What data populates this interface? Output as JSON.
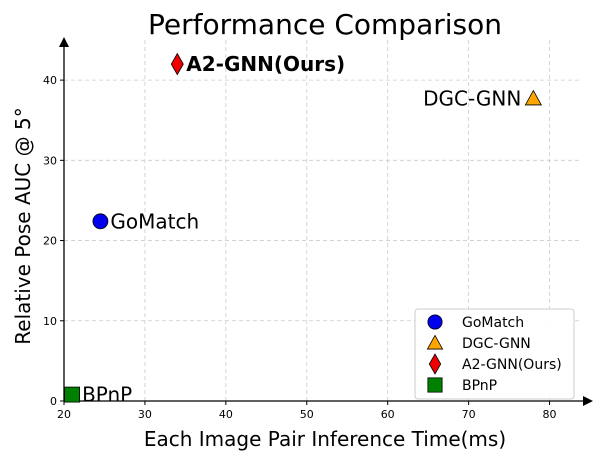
{
  "chart_data": {
    "type": "scatter",
    "title": "Performance Comparison",
    "xlabel": "Each Image Pair Inference Time(ms)",
    "ylabel": "Relative Pose AUC @ 5°",
    "xlim": [
      20,
      85
    ],
    "ylim": [
      0,
      45
    ],
    "xticks": [
      20,
      30,
      40,
      50,
      60,
      70,
      80
    ],
    "yticks": [
      0,
      10,
      20,
      30,
      40
    ],
    "grid": true,
    "legend_position": "bottom-right",
    "series": [
      {
        "name": "GoMatch",
        "x": 24.5,
        "y": 22.4,
        "marker": "circle",
        "color": "#0000ee",
        "label_bold": false
      },
      {
        "name": "DGC-GNN",
        "x": 78.0,
        "y": 37.7,
        "marker": "triangle",
        "color": "#ffa500",
        "label_bold": false
      },
      {
        "name": "A2-GNN(Ours)",
        "x": 34.0,
        "y": 42.0,
        "marker": "diamond",
        "color": "#ee0000",
        "label_bold": true
      },
      {
        "name": "BPnP",
        "x": 21.0,
        "y": 0.8,
        "marker": "square",
        "color": "#008000",
        "label_bold": false
      }
    ]
  }
}
